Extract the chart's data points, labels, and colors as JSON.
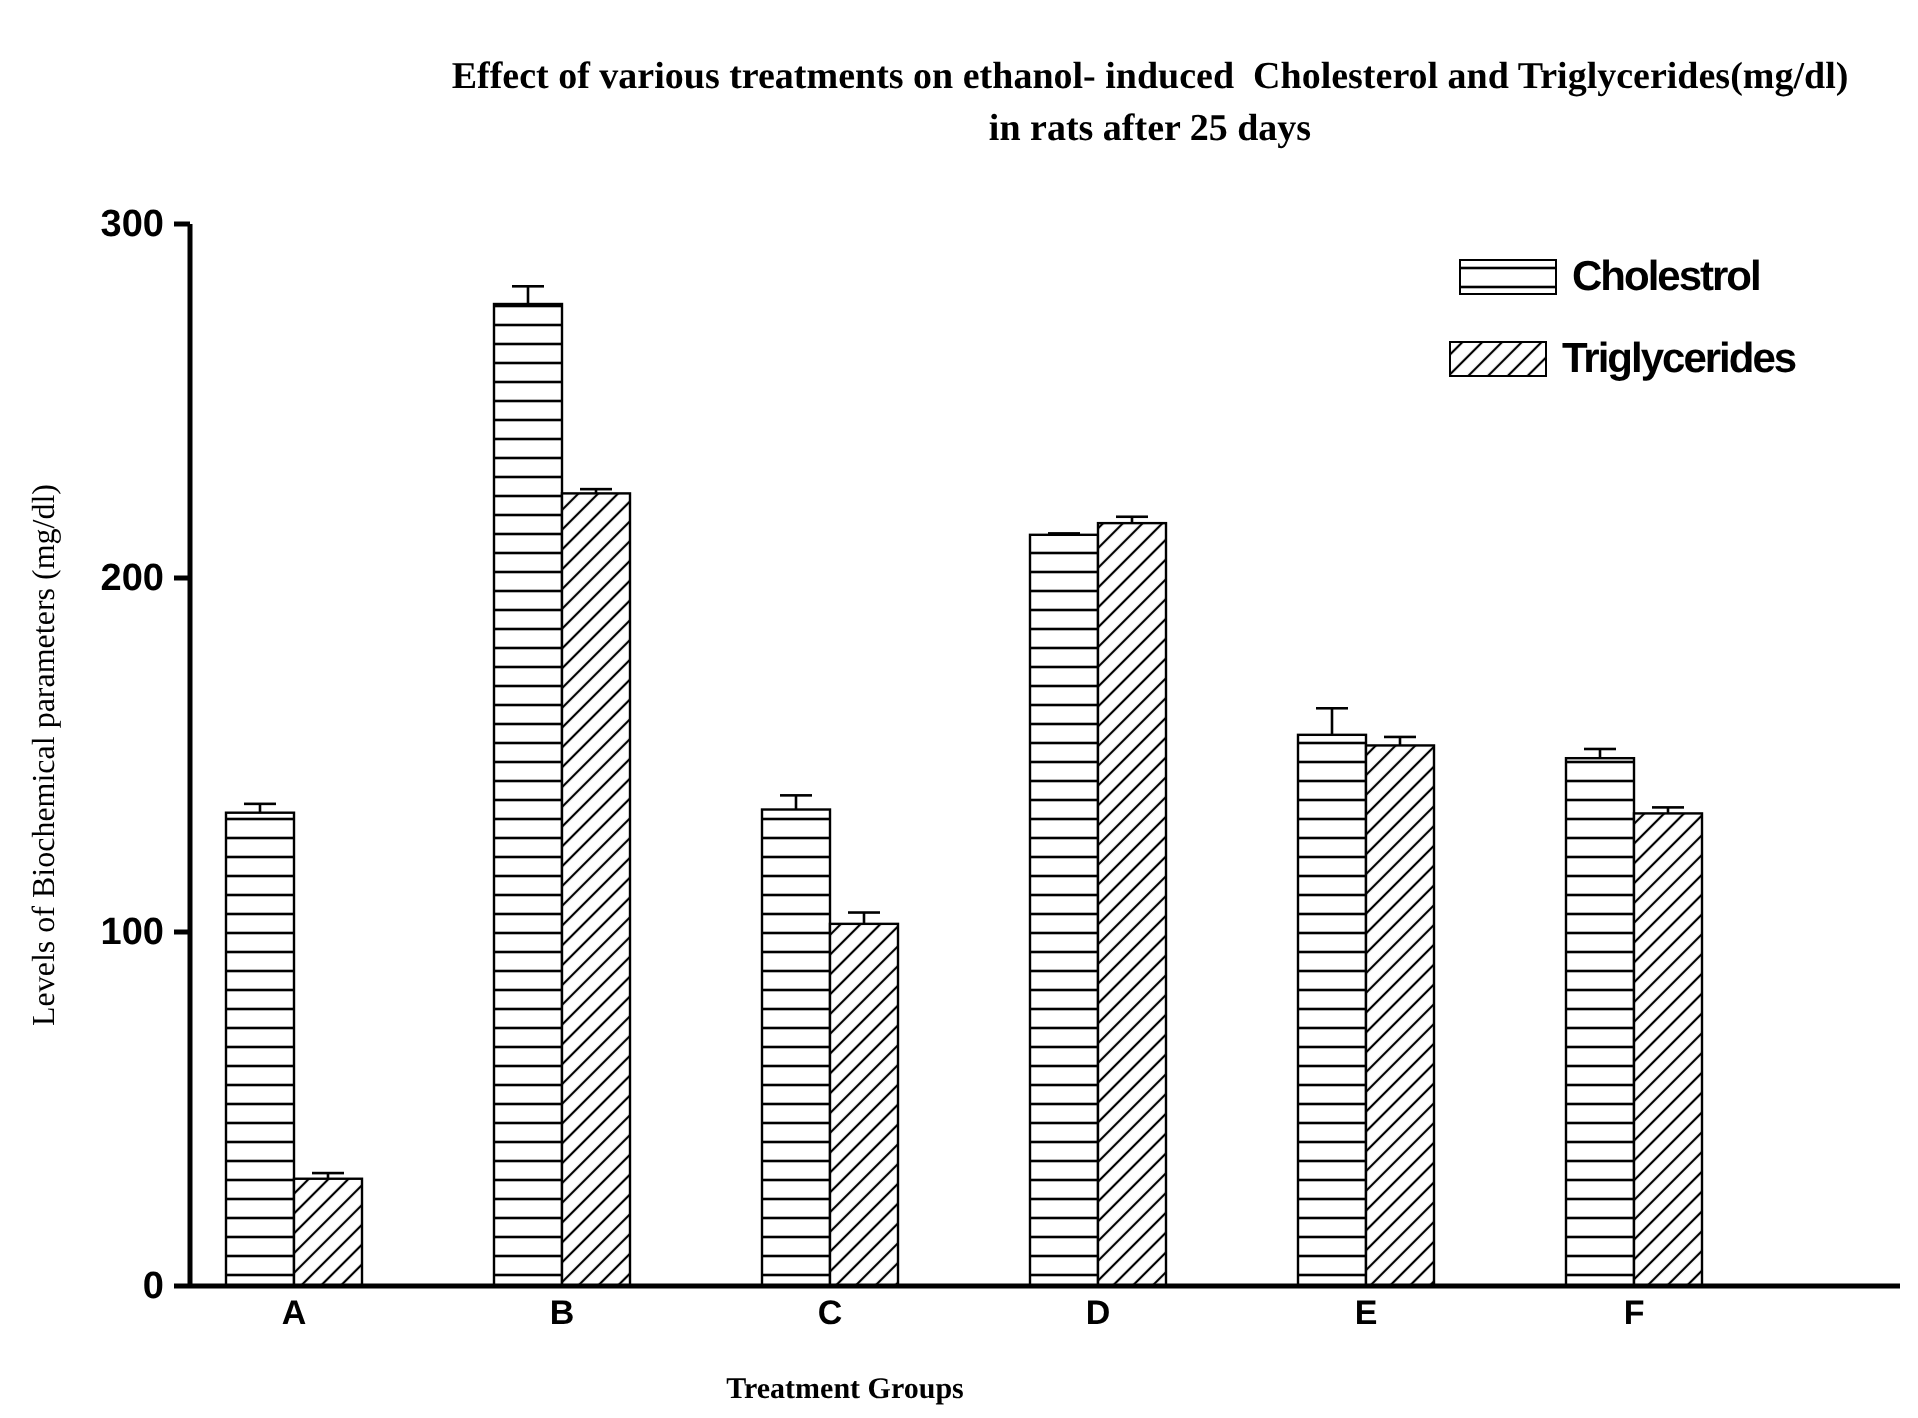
{
  "chart_data": {
    "type": "bar",
    "title": "Effect of various treatments on ethanol- induced  Cholesterol and Triglycerides(mg/dl) in rats after 25 days",
    "xlabel": "Treatment Groups",
    "ylabel": "Levels of Biochemical parameters (mg/dl)",
    "categories": [
      "A",
      "B",
      "C",
      "D",
      "E",
      "F"
    ],
    "series": [
      {
        "name": "Cholestrol",
        "color": "#000000",
        "values": [
          133.7,
          277.4,
          134.6,
          212.2,
          155.7,
          149.1
        ],
        "errors": [
          2.5,
          5,
          4,
          0.4,
          7.5,
          2.6
        ]
      },
      {
        "name": "Triglycerides",
        "color": "#000000",
        "values": [
          30.3,
          223.9,
          102.3,
          215.5,
          152.7,
          133.5
        ],
        "errors": [
          1.6,
          1.2,
          3.2,
          1.8,
          2.4,
          1.7
        ]
      }
    ],
    "ylim": [
      0,
      300
    ],
    "yticks": [
      0,
      100,
      200,
      300
    ],
    "grid": false,
    "legend": "top right"
  }
}
